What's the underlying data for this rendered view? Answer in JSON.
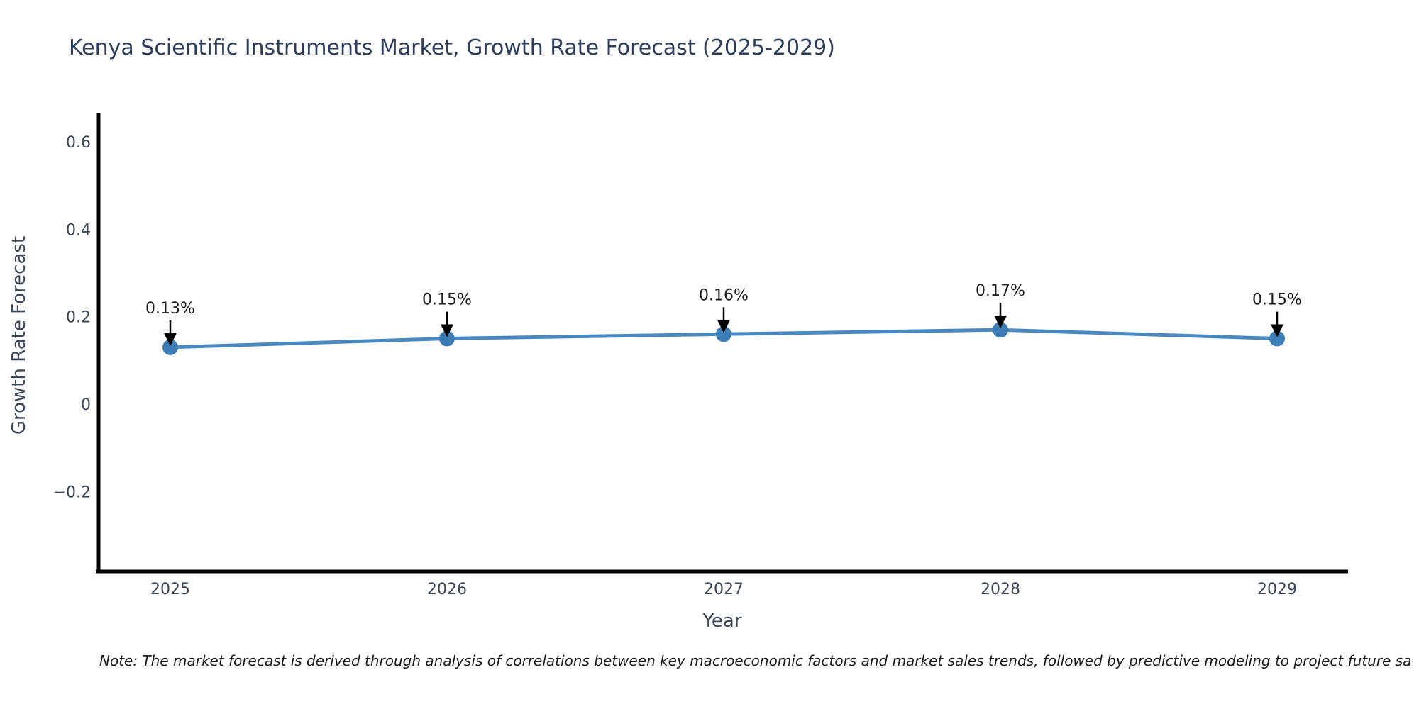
{
  "title": "Kenya Scientific Instruments Market, Growth Rate Forecast (2025-2029)",
  "note": "Note: The market forecast is derived through analysis of correlations between key macroeconomic factors and market sales trends, followed by predictive modeling to project future sa",
  "chart_data": {
    "type": "line",
    "title": "Kenya Scientific Instruments Market, Growth Rate Forecast (2025-2029)",
    "xlabel": "Year",
    "ylabel": "Growth Rate Forecast",
    "categories": [
      "2025",
      "2026",
      "2027",
      "2028",
      "2029"
    ],
    "values": [
      0.13,
      0.15,
      0.16,
      0.17,
      0.15
    ],
    "point_labels": [
      "0.13%",
      "0.15%",
      "0.16%",
      "0.17%",
      "0.15%"
    ],
    "y_ticks": [
      {
        "label": "0.6",
        "value": 0.6
      },
      {
        "label": "0.4",
        "value": 0.4
      },
      {
        "label": "0.2",
        "value": 0.2
      },
      {
        "label": "0",
        "value": 0
      },
      {
        "label": "−0.2",
        "value": -0.2
      }
    ],
    "ylim": [
      -0.38,
      0.66
    ],
    "grid": false,
    "legend_position": "none",
    "line_color": "#4a89c0",
    "marker_color": "#3d7db6",
    "arrow_color": "#000000"
  },
  "colors": {
    "background": "#ffffff",
    "title_text": "#2c3d5d",
    "axis_text": "#3a4659",
    "annotation_text": "#1e1e1e",
    "axis_line": "#000000"
  }
}
